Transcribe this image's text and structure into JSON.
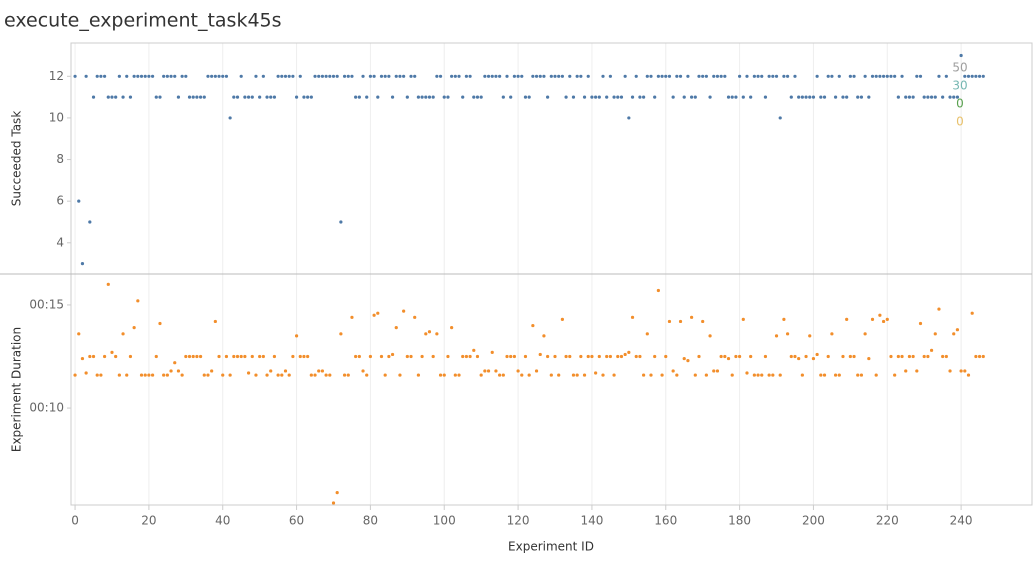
{
  "chart_data": [
    {
      "type": "scatter",
      "title": "execute_experiment_task45s",
      "ylabel": "Succeeded Task",
      "xlim": [
        -1.1,
        259.2
      ],
      "ylim": [
        2.5,
        13.6
      ],
      "yticks": [
        4,
        6,
        8,
        10,
        12
      ],
      "annotations": [
        {
          "text": "50",
          "color": "#9e9e9e"
        },
        {
          "text": "30",
          "color": "#76b7b2"
        },
        {
          "text": "0",
          "color": "#59a14f"
        },
        {
          "text": "0",
          "color": "#e8c16b"
        }
      ],
      "x": [
        0,
        1,
        2,
        3,
        4,
        5,
        6,
        7,
        8,
        9,
        10,
        11,
        12,
        13,
        14,
        15,
        16,
        17,
        18,
        19,
        20,
        21,
        22,
        23,
        24,
        25,
        26,
        27,
        28,
        29,
        30,
        31,
        32,
        33,
        34,
        35,
        36,
        37,
        38,
        39,
        40,
        41,
        42,
        43,
        44,
        45,
        46,
        47,
        48,
        49,
        50,
        51,
        52,
        53,
        54,
        55,
        56,
        57,
        58,
        59,
        60,
        61,
        62,
        63,
        64,
        65,
        66,
        67,
        68,
        69,
        70,
        71,
        72,
        73,
        74,
        75,
        76,
        77,
        78,
        79,
        80,
        81,
        82,
        83,
        84,
        85,
        86,
        87,
        88,
        89,
        90,
        91,
        92,
        93,
        94,
        95,
        96,
        97,
        98,
        99,
        100,
        101,
        102,
        103,
        104,
        105,
        106,
        107,
        108,
        109,
        110,
        111,
        112,
        113,
        114,
        115,
        116,
        117,
        118,
        119,
        120,
        121,
        122,
        123,
        124,
        125,
        126,
        127,
        128,
        129,
        130,
        131,
        132,
        133,
        134,
        135,
        136,
        137,
        138,
        139,
        140,
        141,
        142,
        143,
        144,
        145,
        146,
        147,
        148,
        149,
        150,
        151,
        152,
        153,
        154,
        155,
        156,
        157,
        158,
        159,
        160,
        161,
        162,
        163,
        164,
        165,
        166,
        167,
        168,
        169,
        170,
        171,
        172,
        173,
        174,
        175,
        176,
        177,
        178,
        179,
        180,
        181,
        182,
        183,
        184,
        185,
        186,
        187,
        188,
        189,
        190,
        191,
        192,
        193,
        194,
        195,
        196,
        197,
        198,
        199,
        200,
        201,
        202,
        203,
        204,
        205,
        206,
        207,
        208,
        209,
        210,
        211,
        212,
        213,
        214,
        215,
        216,
        217,
        218,
        219,
        220,
        221,
        222,
        223,
        224,
        225,
        226,
        227,
        228,
        229,
        230,
        231,
        232,
        233,
        234,
        235,
        236,
        237,
        238,
        239,
        240,
        241,
        242,
        243,
        244,
        245,
        246
      ],
      "color": "#4e79a7",
      "values": [
        12,
        6,
        3,
        12,
        5,
        11,
        12,
        12,
        12,
        11,
        11,
        11,
        12,
        11,
        12,
        11,
        12,
        12,
        12,
        12,
        12,
        12,
        11,
        11,
        12,
        12,
        12,
        12,
        11,
        12,
        12,
        11,
        11,
        11,
        11,
        11,
        12,
        12,
        12,
        12,
        12,
        12,
        10,
        11,
        11,
        12,
        11,
        11,
        11,
        12,
        11,
        12,
        11,
        11,
        11,
        12,
        12,
        12,
        12,
        12,
        11,
        12,
        11,
        11,
        11,
        12,
        12,
        12,
        12,
        12,
        12,
        12,
        5,
        12,
        12,
        12,
        11,
        11,
        12,
        11,
        12,
        12,
        11,
        12,
        12,
        12,
        11,
        12,
        12,
        12,
        11,
        12,
        12,
        11,
        11,
        11,
        11,
        11,
        12,
        12,
        11,
        11,
        12,
        12,
        12,
        11,
        12,
        12,
        11,
        11,
        11,
        12,
        12,
        12,
        12,
        12,
        11,
        12,
        11,
        12,
        12,
        12,
        11,
        11,
        12,
        12,
        12,
        12,
        11,
        12,
        12,
        12,
        12,
        11,
        12,
        11,
        12,
        12,
        11,
        12,
        11,
        11,
        11,
        12,
        11,
        12,
        11,
        11,
        11,
        12,
        10,
        11,
        12,
        11,
        11,
        12,
        12,
        11,
        12,
        12,
        12,
        12,
        11,
        12,
        12,
        11,
        12,
        11,
        11,
        12,
        12,
        12,
        11,
        12,
        12,
        12,
        12,
        11,
        11,
        11,
        12,
        11,
        12,
        11,
        12,
        12,
        12,
        11,
        12,
        12,
        12,
        10,
        12,
        12,
        11,
        12,
        11,
        11,
        11,
        11,
        11,
        12,
        11,
        11,
        12,
        12,
        11,
        12,
        11,
        11,
        12,
        12,
        11,
        11,
        12,
        11,
        12,
        12,
        12,
        12,
        12,
        12,
        12,
        11,
        12,
        11,
        11,
        11,
        12,
        12,
        11,
        11,
        11,
        11,
        12,
        11,
        12,
        11,
        11,
        11,
        13,
        12,
        12,
        12,
        12,
        12,
        12
      ]
    },
    {
      "type": "scatter",
      "xlabel": "Experiment ID",
      "ylabel": "Experiment Duration",
      "xlim": [
        -1.1,
        259.2
      ],
      "xticks": [
        0,
        20,
        40,
        60,
        80,
        100,
        120,
        140,
        160,
        180,
        200,
        220,
        240
      ],
      "ylim": [
        5.3,
        16.5
      ],
      "yticks": [
        {
          "value": 10,
          "label": "00:10"
        },
        {
          "value": 15,
          "label": "00:15"
        }
      ],
      "grid": true,
      "x": [
        0,
        1,
        2,
        3,
        4,
        5,
        6,
        7,
        8,
        9,
        10,
        11,
        12,
        13,
        14,
        15,
        16,
        17,
        18,
        19,
        20,
        21,
        22,
        23,
        24,
        25,
        26,
        27,
        28,
        29,
        30,
        31,
        32,
        33,
        34,
        35,
        36,
        37,
        38,
        39,
        40,
        41,
        42,
        43,
        44,
        45,
        46,
        47,
        48,
        49,
        50,
        51,
        52,
        53,
        54,
        55,
        56,
        57,
        58,
        59,
        60,
        61,
        62,
        63,
        64,
        65,
        66,
        67,
        68,
        69,
        70,
        71,
        72,
        73,
        74,
        75,
        76,
        77,
        78,
        79,
        80,
        81,
        82,
        83,
        84,
        85,
        86,
        87,
        88,
        89,
        90,
        91,
        92,
        93,
        94,
        95,
        96,
        97,
        98,
        99,
        100,
        101,
        102,
        103,
        104,
        105,
        106,
        107,
        108,
        109,
        110,
        111,
        112,
        113,
        114,
        115,
        116,
        117,
        118,
        119,
        120,
        121,
        122,
        123,
        124,
        125,
        126,
        127,
        128,
        129,
        130,
        131,
        132,
        133,
        134,
        135,
        136,
        137,
        138,
        139,
        140,
        141,
        142,
        143,
        144,
        145,
        146,
        147,
        148,
        149,
        150,
        151,
        152,
        153,
        154,
        155,
        156,
        157,
        158,
        159,
        160,
        161,
        162,
        163,
        164,
        165,
        166,
        167,
        168,
        169,
        170,
        171,
        172,
        173,
        174,
        175,
        176,
        177,
        178,
        179,
        180,
        181,
        182,
        183,
        184,
        185,
        186,
        187,
        188,
        189,
        190,
        191,
        192,
        193,
        194,
        195,
        196,
        197,
        198,
        199,
        200,
        201,
        202,
        203,
        204,
        205,
        206,
        207,
        208,
        209,
        210,
        211,
        212,
        213,
        214,
        215,
        216,
        217,
        218,
        219,
        220,
        221,
        222,
        223,
        224,
        225,
        226,
        227,
        228,
        229,
        230,
        231,
        232,
        233,
        234,
        235,
        236,
        237,
        238,
        239,
        240,
        241,
        242,
        243,
        244,
        245,
        246
      ],
      "color": "#f28e2b",
      "values": [
        11.6,
        13.6,
        12.4,
        11.7,
        12.5,
        12.5,
        11.6,
        11.6,
        12.5,
        16.0,
        12.7,
        12.5,
        11.6,
        13.6,
        11.6,
        12.5,
        13.9,
        15.2,
        11.6,
        11.6,
        11.6,
        11.6,
        12.5,
        14.1,
        11.6,
        11.6,
        11.8,
        12.2,
        11.8,
        11.6,
        12.5,
        12.5,
        12.5,
        12.5,
        12.5,
        11.6,
        11.6,
        11.8,
        14.2,
        12.5,
        11.6,
        12.5,
        11.6,
        12.5,
        12.5,
        12.5,
        12.5,
        11.7,
        12.5,
        11.6,
        12.5,
        12.5,
        11.6,
        11.8,
        12.5,
        11.6,
        11.6,
        11.8,
        11.6,
        12.5,
        13.5,
        12.5,
        12.5,
        12.5,
        11.6,
        11.6,
        11.8,
        11.8,
        11.6,
        11.6,
        5.4,
        5.9,
        13.6,
        11.6,
        11.6,
        14.4,
        12.5,
        12.5,
        11.8,
        11.6,
        12.5,
        14.5,
        14.6,
        12.5,
        11.6,
        12.5,
        12.6,
        13.9,
        11.6,
        14.7,
        12.5,
        12.5,
        14.4,
        11.6,
        12.5,
        13.6,
        13.7,
        12.5,
        13.6,
        11.6,
        11.6,
        12.5,
        13.9,
        11.6,
        11.6,
        12.5,
        12.5,
        12.5,
        12.8,
        12.5,
        11.6,
        11.8,
        11.8,
        12.7,
        11.8,
        11.6,
        11.6,
        12.5,
        12.5,
        12.5,
        11.8,
        11.6,
        12.5,
        11.6,
        14.0,
        11.8,
        12.6,
        13.5,
        12.5,
        11.6,
        12.5,
        11.6,
        14.3,
        12.5,
        12.5,
        11.6,
        11.6,
        12.5,
        11.6,
        12.5,
        12.5,
        11.7,
        12.5,
        11.6,
        12.5,
        12.5,
        11.6,
        12.5,
        12.5,
        12.6,
        12.7,
        14.4,
        12.5,
        12.5,
        11.6,
        13.6,
        11.6,
        12.5,
        15.7,
        11.6,
        12.5,
        14.2,
        11.8,
        11.6,
        14.2,
        12.4,
        12.3,
        14.4,
        11.6,
        12.5,
        14.2,
        11.6,
        13.5,
        11.8,
        11.8,
        12.5,
        12.5,
        12.4,
        11.6,
        12.5,
        12.5,
        14.3,
        11.7,
        12.5,
        11.6,
        11.6,
        11.6,
        12.5,
        11.6,
        11.6,
        13.5,
        11.6,
        14.3,
        13.6,
        12.5,
        12.5,
        12.4,
        11.6,
        12.5,
        13.5,
        12.4,
        12.6,
        11.6,
        11.6,
        12.5,
        13.6,
        11.6,
        11.6,
        12.5,
        14.3,
        12.5,
        12.5,
        11.6,
        11.6,
        13.6,
        12.4,
        14.3,
        11.6,
        14.5,
        14.2,
        14.3,
        12.5,
        11.6,
        12.5,
        12.5,
        11.8,
        12.5,
        12.5,
        11.8,
        14.1,
        12.5,
        12.5,
        12.8,
        13.6,
        14.8,
        12.5,
        12.5,
        11.8,
        13.6,
        13.8,
        11.8,
        11.8,
        11.6,
        14.6,
        12.5,
        12.5,
        12.5
      ]
    }
  ]
}
